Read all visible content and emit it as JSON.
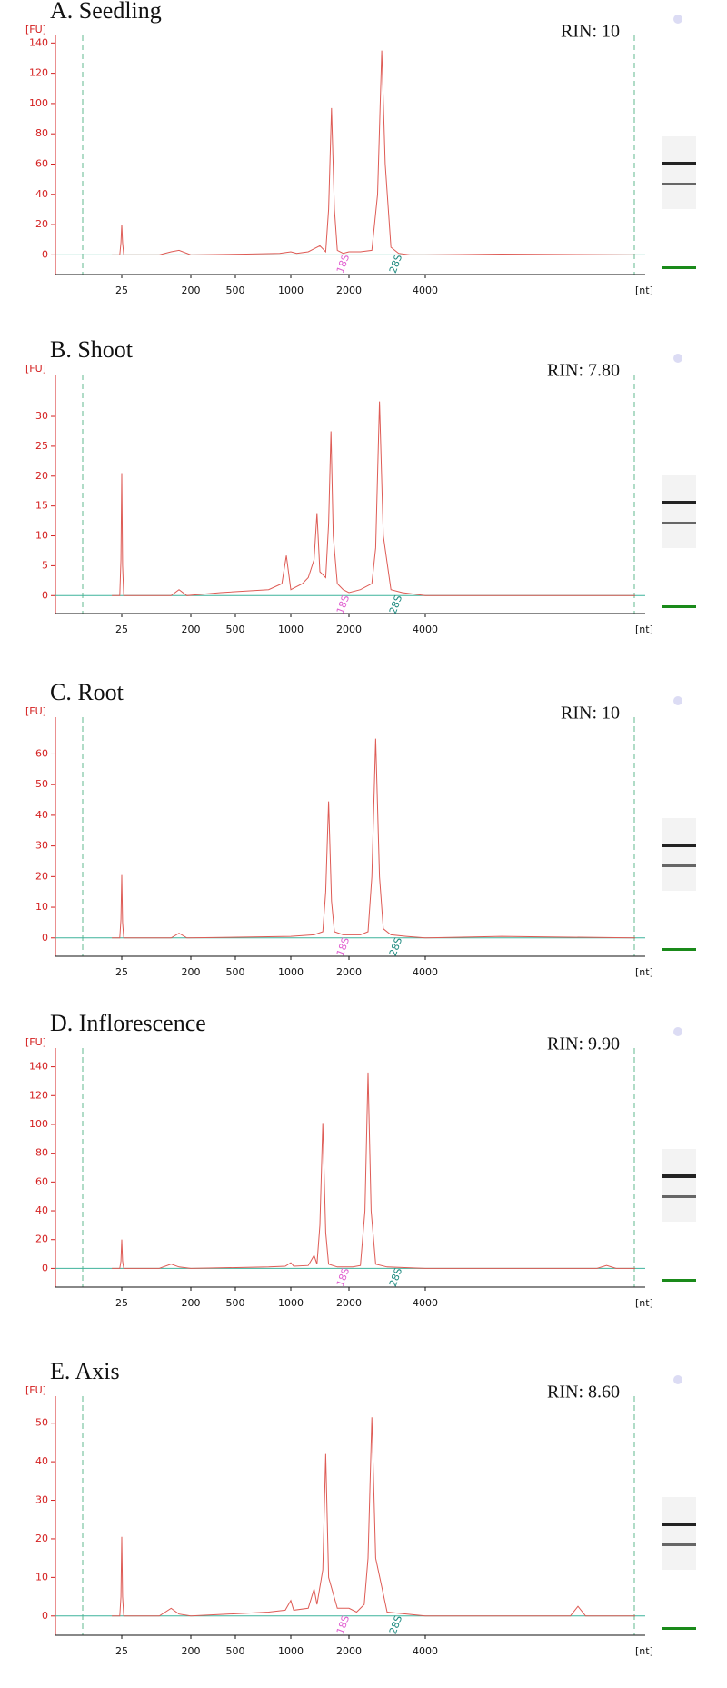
{
  "chart_data": [
    {
      "type": "line",
      "title": "A. Seedling",
      "annotation": "RIN: 10",
      "ylabel": "[FU]",
      "xlabel": "[nt]",
      "peak_labels": [
        "18S",
        "28S"
      ],
      "x": [
        0,
        20,
        23,
        25,
        27,
        30,
        120,
        150,
        170,
        200,
        600,
        900,
        1000,
        1100,
        1300,
        1400,
        1500,
        1600,
        1650,
        1700,
        1750,
        1800,
        1900,
        2000,
        2300,
        2600,
        2750,
        2860,
        2950,
        3100,
        3300,
        3600,
        4000,
        6000,
        9500
      ],
      "values": [
        0,
        0,
        8,
        20,
        8,
        0,
        0,
        2,
        3,
        0,
        0.5,
        1,
        2,
        1,
        2,
        4,
        6,
        2,
        30,
        97,
        30,
        3,
        1,
        2,
        2,
        3,
        40,
        135,
        60,
        5,
        1,
        0,
        0,
        0.5,
        0
      ],
      "color": "#de5b55",
      "ylim": [
        -13,
        145
      ],
      "yticks": [
        0,
        20,
        40,
        60,
        80,
        100,
        120,
        140
      ],
      "xticks": [
        25,
        200,
        500,
        1000,
        2000,
        4000
      ]
    },
    {
      "type": "line",
      "title": "B. Shoot",
      "annotation": "RIN: 7.80",
      "ylabel": "[FU]",
      "xlabel": "[nt]",
      "peak_labels": [
        "18S",
        "28S"
      ],
      "x": [
        0,
        20,
        23,
        25,
        27,
        30,
        150,
        170,
        190,
        400,
        800,
        920,
        960,
        1000,
        1200,
        1300,
        1400,
        1450,
        1500,
        1600,
        1650,
        1690,
        1730,
        1800,
        1900,
        2000,
        2300,
        2600,
        2700,
        2800,
        2900,
        3100,
        3400,
        4000,
        6000,
        9500
      ],
      "values": [
        0,
        0,
        6,
        20.5,
        5,
        0,
        0,
        1,
        0,
        0.5,
        1,
        2,
        6.7,
        1,
        2,
        3,
        6,
        13.8,
        4,
        3,
        12,
        27.5,
        10,
        2,
        1,
        0.5,
        1,
        2,
        8,
        32.5,
        10,
        1,
        0.5,
        0,
        0,
        0
      ],
      "color": "#de5b55",
      "ylim": [
        -3,
        37
      ],
      "yticks": [
        0,
        5,
        10,
        15,
        20,
        25,
        30
      ],
      "xticks": [
        25,
        200,
        500,
        1000,
        2000,
        4000
      ]
    },
    {
      "type": "line",
      "title": "C. Root",
      "annotation": "RIN: 10",
      "ylabel": "[FU]",
      "xlabel": "[nt]",
      "peak_labels": [
        "18S",
        "28S"
      ],
      "x": [
        0,
        20,
        23,
        25,
        27,
        30,
        150,
        170,
        190,
        1000,
        1400,
        1550,
        1600,
        1650,
        1700,
        1750,
        1900,
        2300,
        2500,
        2600,
        2700,
        2800,
        2900,
        3100,
        3500,
        4000,
        6000,
        9500
      ],
      "values": [
        0,
        0,
        6,
        20.5,
        5,
        0,
        0,
        1.5,
        0,
        0.5,
        1,
        2,
        15,
        44.5,
        12,
        2,
        1,
        1,
        2,
        20,
        65,
        20,
        3,
        1,
        0.5,
        0,
        0.5,
        0
      ],
      "color": "#de5b55",
      "ylim": [
        -6,
        72
      ],
      "yticks": [
        0,
        10,
        20,
        30,
        40,
        50,
        60
      ],
      "xticks": [
        25,
        200,
        500,
        1000,
        2000,
        4000
      ]
    },
    {
      "type": "line",
      "title": "D. Inflorescence",
      "annotation": "RIN: 9.90",
      "ylabel": "[FU]",
      "xlabel": "[nt]",
      "peak_labels": [
        "18S",
        "28S"
      ],
      "x": [
        0,
        20,
        23,
        25,
        27,
        30,
        120,
        150,
        170,
        200,
        800,
        950,
        1000,
        1050,
        1300,
        1400,
        1450,
        1500,
        1550,
        1600,
        1650,
        1800,
        2100,
        2300,
        2420,
        2500,
        2580,
        2700,
        3000,
        4000,
        8500,
        8750,
        9000,
        9500
      ],
      "values": [
        0,
        0,
        5,
        20,
        5,
        0,
        0,
        3,
        1,
        0,
        1,
        1.5,
        4,
        1.5,
        2,
        9,
        3,
        30,
        101,
        25,
        3,
        1,
        1,
        2,
        40,
        136,
        40,
        3,
        1,
        0,
        0,
        2,
        0,
        0
      ],
      "color": "#de5b55",
      "ylim": [
        -13,
        153
      ],
      "yticks": [
        0,
        20,
        40,
        60,
        80,
        100,
        120,
        140
      ],
      "xticks": [
        25,
        200,
        500,
        1000,
        2000,
        4000
      ]
    },
    {
      "type": "line",
      "title": "E. Axis",
      "annotation": "RIN: 8.60",
      "ylabel": "[FU]",
      "xlabel": "[nt]",
      "peak_labels": [
        "18S",
        "28S"
      ],
      "x": [
        0,
        20,
        23,
        25,
        27,
        30,
        120,
        150,
        170,
        200,
        800,
        950,
        1000,
        1050,
        1300,
        1400,
        1450,
        1550,
        1600,
        1650,
        1800,
        2000,
        2200,
        2400,
        2500,
        2600,
        2700,
        3000,
        4000,
        7800,
        8000,
        8200,
        9500
      ],
      "values": [
        0,
        0,
        5,
        20.5,
        5,
        0,
        0,
        2,
        0.5,
        0,
        1,
        1.5,
        4,
        1.5,
        2,
        7,
        3,
        12,
        42,
        10,
        2,
        2,
        1,
        3,
        15,
        51.5,
        15,
        1,
        0,
        0,
        2.5,
        0,
        0
      ],
      "color": "#de5b55",
      "ylim": [
        -5,
        57
      ],
      "yticks": [
        0,
        10,
        20,
        30,
        40,
        50
      ],
      "xticks": [
        25,
        200,
        500,
        1000,
        2000,
        4000
      ]
    }
  ]
}
